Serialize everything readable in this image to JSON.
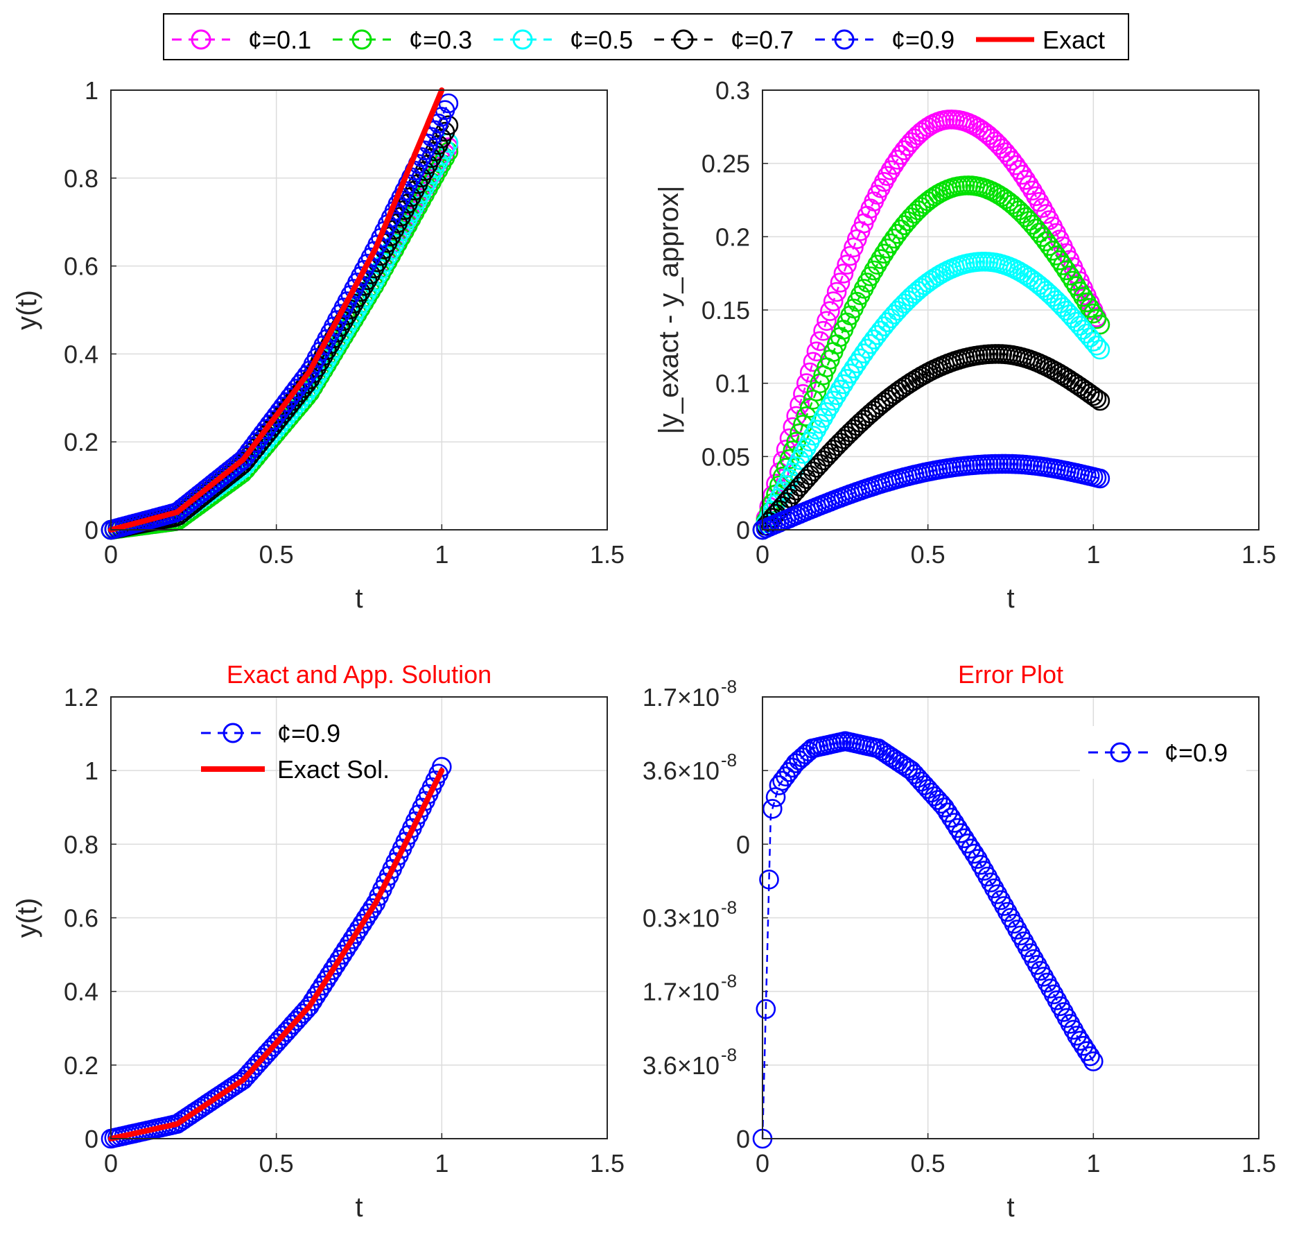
{
  "figure": {
    "legend": {
      "entries": [
        {
          "label": "¢=0.1",
          "color": "#ff00ff",
          "style": "dashed-circle"
        },
        {
          "label": "¢=0.3",
          "color": "#00e000",
          "style": "dashed-circle"
        },
        {
          "label": "¢=0.5",
          "color": "#00ffff",
          "style": "dashed-circle"
        },
        {
          "label": "¢=0.7",
          "color": "#000000",
          "style": "dashed-circle"
        },
        {
          "label": "¢=0.9",
          "color": "#0000ff",
          "style": "dashed-circle"
        },
        {
          "label": "Exact",
          "color": "#ff0000",
          "style": "solid"
        }
      ]
    }
  },
  "chart_data": [
    {
      "id": "top-left",
      "type": "line",
      "title": "",
      "xlabel": "t",
      "ylabel": "y(t)",
      "xlim": [
        0,
        1.5
      ],
      "ylim": [
        0,
        1
      ],
      "xticks": [
        "0",
        "0.5",
        "1",
        "1.5"
      ],
      "yticks": [
        "0",
        "0.2",
        "0.4",
        "0.6",
        "0.8",
        "1"
      ],
      "grid": true,
      "series": [
        {
          "name": "¢=0.1",
          "color": "#ff00ff",
          "marker": "circle",
          "dashed": true,
          "x": [
            0,
            0.2,
            0.4,
            0.6,
            0.8,
            1.02
          ],
          "y": [
            0,
            0.02,
            0.13,
            0.31,
            0.56,
            0.87
          ]
        },
        {
          "name": "¢=0.3",
          "color": "#00e000",
          "marker": "circle",
          "dashed": true,
          "x": [
            0,
            0.2,
            0.4,
            0.6,
            0.8,
            1.02
          ],
          "y": [
            0,
            0.02,
            0.13,
            0.31,
            0.56,
            0.86
          ]
        },
        {
          "name": "¢=0.5",
          "color": "#00ffff",
          "marker": "circle",
          "dashed": true,
          "x": [
            0,
            0.2,
            0.4,
            0.6,
            0.8,
            1.02
          ],
          "y": [
            0,
            0.03,
            0.14,
            0.32,
            0.57,
            0.88
          ]
        },
        {
          "name": "¢=0.7",
          "color": "#000000",
          "marker": "circle",
          "dashed": true,
          "x": [
            0,
            0.2,
            0.4,
            0.6,
            0.8,
            1.02
          ],
          "y": [
            0,
            0.03,
            0.15,
            0.34,
            0.6,
            0.92
          ]
        },
        {
          "name": "¢=0.9",
          "color": "#0000ff",
          "marker": "circle",
          "dashed": true,
          "x": [
            0,
            0.2,
            0.4,
            0.6,
            0.8,
            1.02
          ],
          "y": [
            0,
            0.04,
            0.16,
            0.36,
            0.64,
            0.97
          ]
        },
        {
          "name": "Exact",
          "color": "#ff0000",
          "marker": "none",
          "dashed": false,
          "x": [
            0,
            0.2,
            0.4,
            0.6,
            0.8,
            1.0
          ],
          "y": [
            0,
            0.04,
            0.16,
            0.36,
            0.64,
            1.0
          ]
        }
      ]
    },
    {
      "id": "top-right",
      "type": "line",
      "title": "",
      "xlabel": "t",
      "ylabel": "|y_exact - y_approx|",
      "xlim": [
        0,
        1.5
      ],
      "ylim": [
        0,
        0.3
      ],
      "xticks": [
        "0",
        "0.5",
        "1",
        "1.5"
      ],
      "yticks": [
        "0",
        "0.05",
        "0.1",
        "0.15",
        "0.2",
        "0.25",
        "0.3"
      ],
      "grid": true,
      "series": [
        {
          "name": "¢=0.1",
          "color": "#ff00ff",
          "marker": "circle",
          "dashed": true,
          "peak_t": 0.57,
          "peak": 0.28,
          "end": 0.14
        },
        {
          "name": "¢=0.3",
          "color": "#00e000",
          "marker": "circle",
          "dashed": true,
          "peak_t": 0.62,
          "peak": 0.235,
          "end": 0.14
        },
        {
          "name": "¢=0.5",
          "color": "#00ffff",
          "marker": "circle",
          "dashed": true,
          "peak_t": 0.67,
          "peak": 0.183,
          "end": 0.123
        },
        {
          "name": "¢=0.7",
          "color": "#000000",
          "marker": "circle",
          "dashed": true,
          "peak_t": 0.71,
          "peak": 0.12,
          "end": 0.088
        },
        {
          "name": "¢=0.9",
          "color": "#0000ff",
          "marker": "circle",
          "dashed": true,
          "peak_t": 0.73,
          "peak": 0.045,
          "end": 0.035
        }
      ]
    },
    {
      "id": "bottom-left",
      "type": "line",
      "title": "Exact and App. Solution",
      "xlabel": "t",
      "ylabel": "y(t)",
      "xlim": [
        0,
        1.5
      ],
      "ylim": [
        0,
        1.2
      ],
      "xticks": [
        "0",
        "0.5",
        "1",
        "1.5"
      ],
      "yticks": [
        "0",
        "0.2",
        "0.4",
        "0.6",
        "0.8",
        "1",
        "1.2"
      ],
      "grid": true,
      "legend": [
        {
          "label": "¢=0.9",
          "color": "#0000ff",
          "style": "dashed-circle"
        },
        {
          "label": "Exact Sol.",
          "color": "#ff0000",
          "style": "solid"
        }
      ],
      "series": [
        {
          "name": "¢=0.9",
          "color": "#0000ff",
          "marker": "circle",
          "dashed": true,
          "x": [
            0,
            0.2,
            0.4,
            0.6,
            0.8,
            1.0
          ],
          "y": [
            0,
            0.04,
            0.16,
            0.36,
            0.64,
            1.01
          ]
        },
        {
          "name": "Exact Sol.",
          "color": "#ff0000",
          "marker": "none",
          "dashed": false,
          "x": [
            0,
            0.2,
            0.4,
            0.6,
            0.8,
            1.0
          ],
          "y": [
            0,
            0.04,
            0.16,
            0.36,
            0.64,
            1.0
          ]
        }
      ]
    },
    {
      "id": "bottom-right",
      "type": "line",
      "title": "Error Plot",
      "xlabel": "t",
      "ylabel": "",
      "xlim": [
        0,
        1.5
      ],
      "ylim": [
        0,
        6
      ],
      "xticks": [
        "0",
        "0.5",
        "1",
        "1.5"
      ],
      "yticks": [
        "0",
        "3.6×10",
        "1.7×10",
        "0.3×10",
        "0",
        "3.6×10",
        "1.7×10"
      ],
      "ytick_exponent": "-8",
      "exponent_flags": [
        false,
        true,
        true,
        true,
        false,
        true,
        true
      ],
      "grid": true,
      "legend": [
        {
          "label": "¢=0.9",
          "color": "#0000ff",
          "style": "dashed-circle"
        }
      ],
      "series": [
        {
          "name": "¢=0.9",
          "color": "#0000ff",
          "marker": "circle",
          "dashed": true,
          "x": [
            0,
            0.025,
            0.05,
            0.1,
            0.15,
            0.25,
            0.35,
            0.45,
            0.55,
            0.65,
            0.75,
            0.85,
            0.95,
            1.0
          ],
          "y": [
            0,
            4.4,
            4.8,
            5.1,
            5.3,
            5.4,
            5.3,
            5.0,
            4.5,
            3.8,
            3.0,
            2.2,
            1.4,
            1.05
          ]
        }
      ]
    }
  ]
}
